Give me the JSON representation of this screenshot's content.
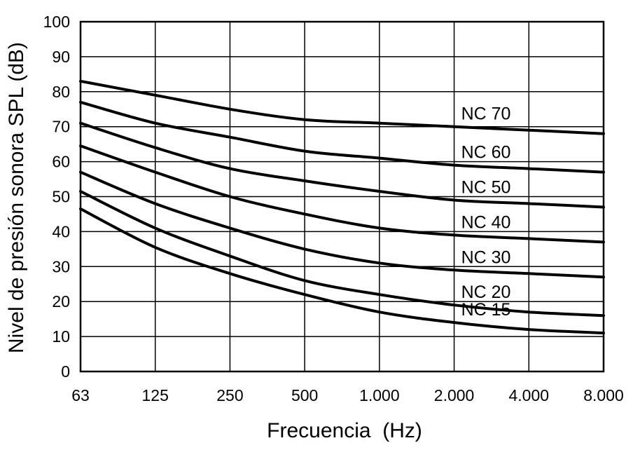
{
  "chart_data": {
    "type": "line",
    "xlabel": "Frecuencia  (Hz)",
    "ylabel": "Nivel de presión sonora SPL (dB)",
    "categories": [
      "63",
      "125",
      "250",
      "500",
      "1.000",
      "2.000",
      "4.000",
      "8.000"
    ],
    "x_scale": "log2",
    "ylim": [
      0,
      100
    ],
    "yticks": [
      "0",
      "10",
      "20",
      "30",
      "40",
      "50",
      "60",
      "70",
      "80",
      "90",
      "100"
    ],
    "grid": true,
    "series": [
      {
        "name": "NC 70",
        "values": [
          83,
          79,
          75,
          72,
          71,
          70,
          69,
          68
        ]
      },
      {
        "name": "NC 60",
        "values": [
          77,
          71,
          67,
          63,
          61,
          59,
          58,
          57
        ]
      },
      {
        "name": "NC 50",
        "values": [
          71,
          64,
          58,
          54.5,
          51.5,
          49,
          48,
          47
        ]
      },
      {
        "name": "NC 40",
        "values": [
          64.5,
          57,
          50,
          45,
          41,
          39,
          38,
          37
        ]
      },
      {
        "name": "NC 30",
        "values": [
          57,
          48,
          41,
          35,
          31,
          29,
          28,
          27
        ]
      },
      {
        "name": "NC 20",
        "values": [
          51.5,
          41,
          33,
          26,
          22,
          19,
          17,
          16
        ]
      },
      {
        "name": "NC 15",
        "values": [
          46.5,
          35.5,
          28,
          22,
          17,
          14,
          12,
          11
        ]
      }
    ]
  }
}
